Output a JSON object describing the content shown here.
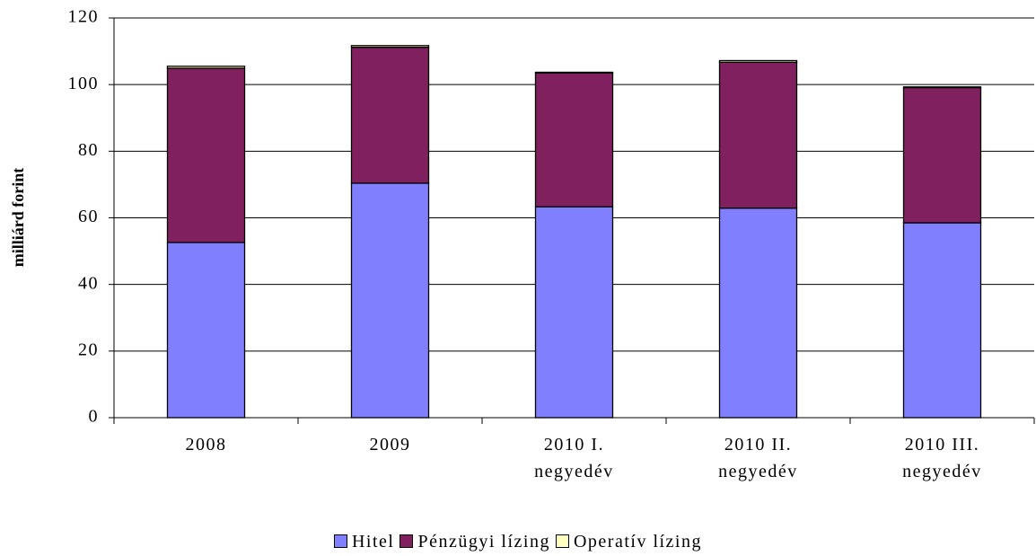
{
  "chart_data": {
    "type": "stacked-bar",
    "y_label": "milliárd forint",
    "categories": [
      "2008",
      "2009",
      "2010 I. negyedév",
      "2010 II. negyedév",
      "2010 III. negyedév"
    ],
    "series": [
      {
        "name": "Hitel",
        "color": "#8080ff",
        "values": [
          52.6,
          70.4,
          63.3,
          62.9,
          58.5
        ]
      },
      {
        "name": "Pénzügyi lízing",
        "color": "#80205e",
        "values": [
          52.3,
          40.8,
          40.2,
          43.8,
          40.6
        ]
      },
      {
        "name": "Operatív lízing",
        "color": "#ffffc0",
        "values": [
          0.6,
          0.5,
          0.2,
          0.5,
          0.2
        ]
      }
    ],
    "ylim": [
      0,
      120
    ],
    "yticks": [
      0,
      20,
      40,
      60,
      80,
      100,
      120
    ],
    "grid": true,
    "legend": "bottom"
  }
}
